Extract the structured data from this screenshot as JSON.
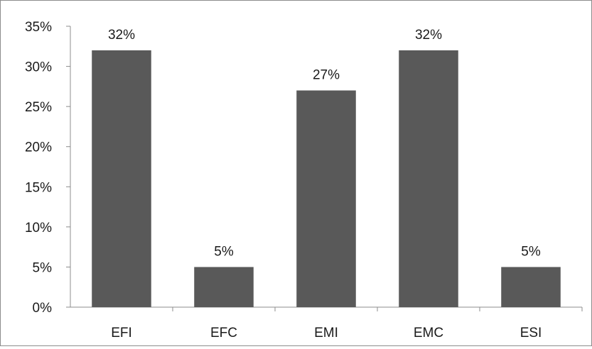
{
  "chart_data": {
    "type": "bar",
    "categories": [
      "EFI",
      "EFC",
      "EMI",
      "EMC",
      "ESI"
    ],
    "values": [
      32,
      5,
      27,
      32,
      5
    ],
    "data_labels": [
      "32%",
      "5%",
      "27%",
      "32%",
      "5%"
    ],
    "title": "",
    "xlabel": "",
    "ylabel": "",
    "ylim": [
      0,
      35
    ],
    "yticks": [
      0,
      5,
      10,
      15,
      20,
      25,
      30,
      35
    ],
    "ytick_labels": [
      "0%",
      "5%",
      "10%",
      "15%",
      "20%",
      "25%",
      "30%",
      "35%"
    ],
    "grid": false,
    "legend": "none",
    "bar_color": "#595959",
    "axis_color": "#8c8c8c"
  }
}
